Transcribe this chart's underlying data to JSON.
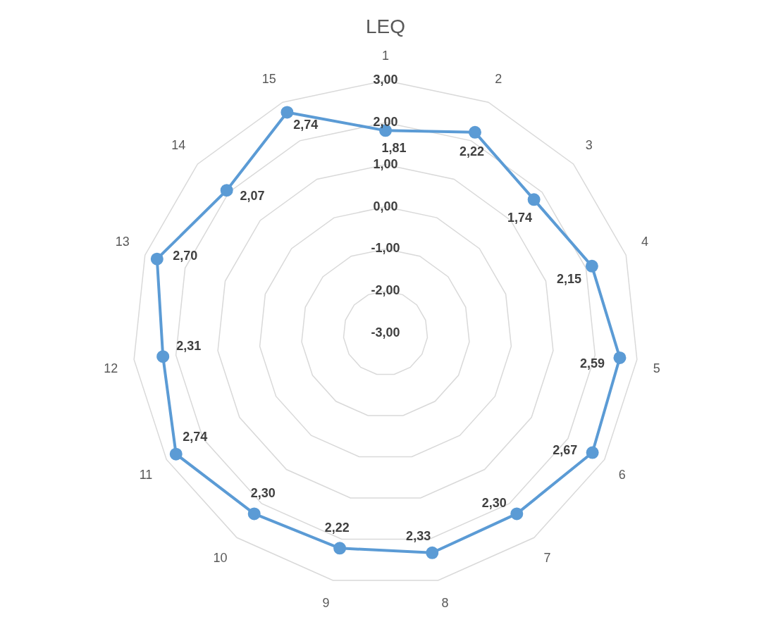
{
  "chart_data": {
    "type": "radar",
    "title": "LEQ",
    "categories": [
      "1",
      "2",
      "3",
      "4",
      "5",
      "6",
      "7",
      "8",
      "9",
      "10",
      "11",
      "12",
      "13",
      "14",
      "15"
    ],
    "series": [
      {
        "color": "#5b9bd5",
        "values": [
          1.81,
          2.22,
          1.74,
          2.15,
          2.59,
          2.67,
          2.3,
          2.33,
          2.22,
          2.3,
          2.74,
          2.31,
          2.7,
          2.07,
          2.74
        ],
        "value_labels": [
          "1,81",
          "2,22",
          "1,74",
          "2,15",
          "2,59",
          "2,67",
          "2,30",
          "2,33",
          "2,22",
          "2,30",
          "2,74",
          "2,31",
          "2,70",
          "2,07",
          "2,74"
        ]
      }
    ],
    "ylim": [
      -3,
      3
    ],
    "yticks": [
      {
        "value": -3,
        "label": "-3,00"
      },
      {
        "value": -2,
        "label": "-2,00"
      },
      {
        "value": -1,
        "label": "-1,00"
      },
      {
        "value": 0,
        "label": "0,00"
      },
      {
        "value": 1,
        "label": "1,00"
      },
      {
        "value": 2,
        "label": "2,00"
      },
      {
        "value": 3,
        "label": "3,00"
      }
    ],
    "grid": true,
    "legend": false,
    "marker": "circle",
    "line_style": "solid"
  }
}
